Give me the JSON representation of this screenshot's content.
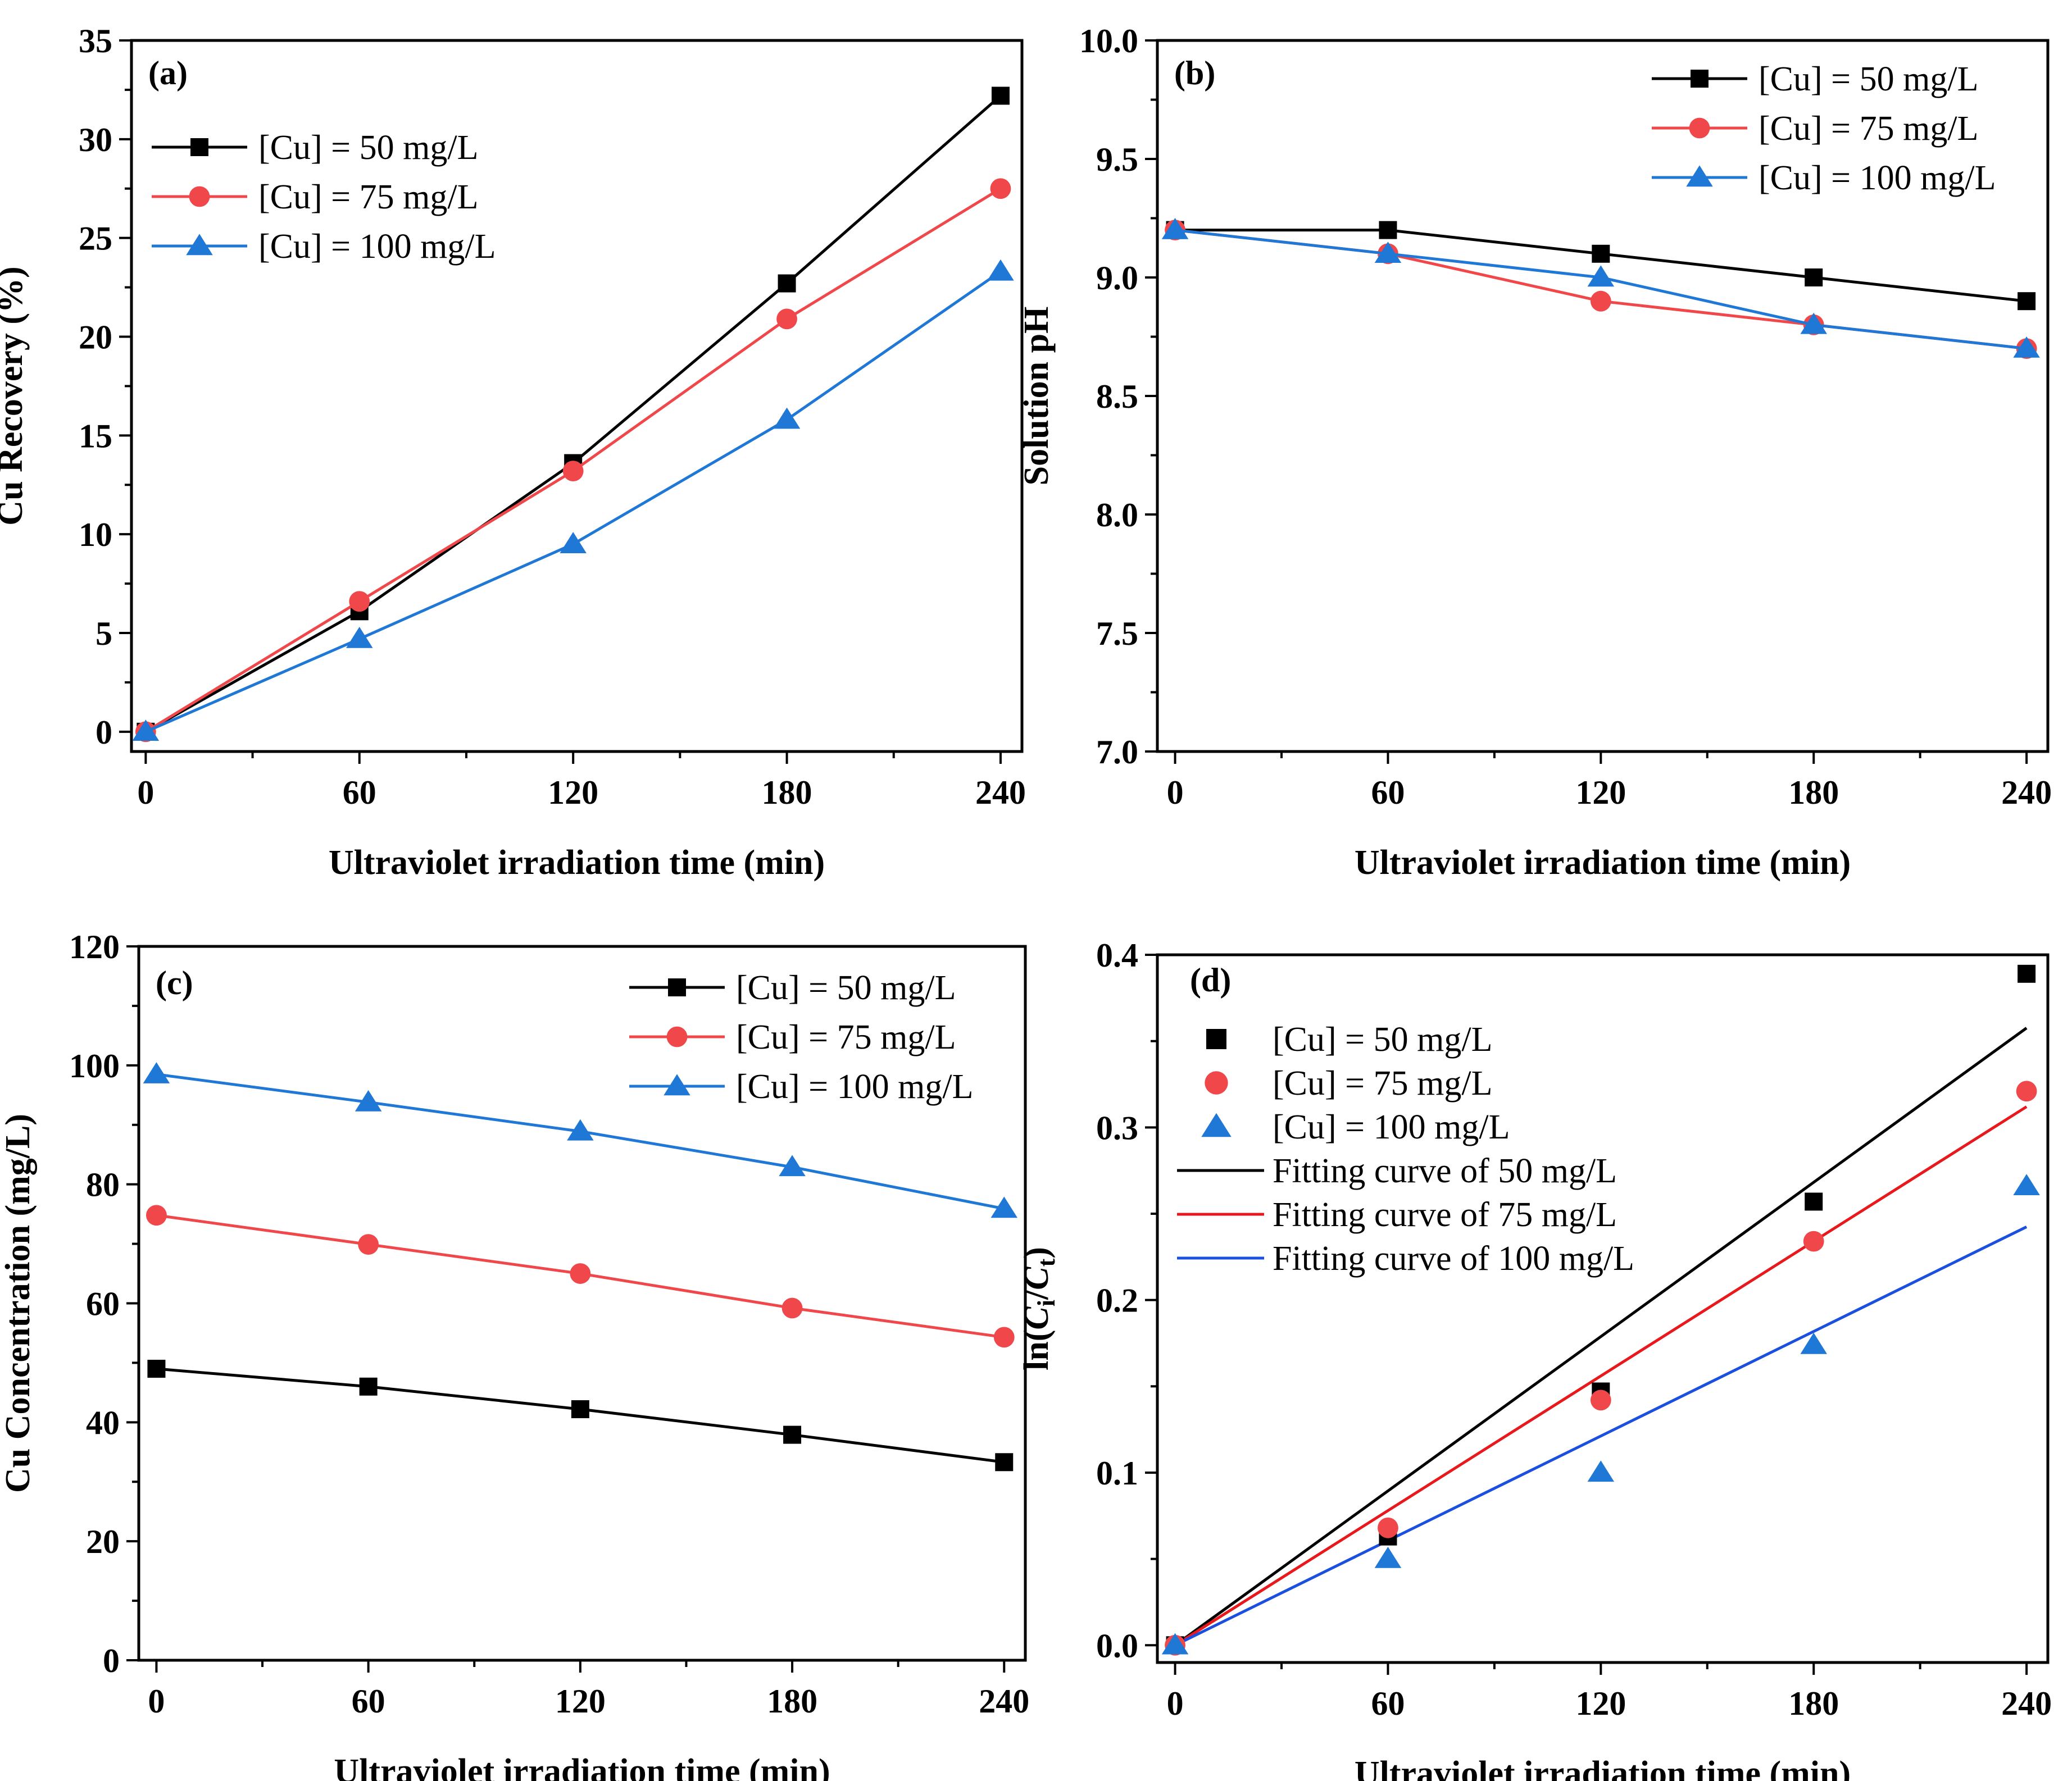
{
  "colors": {
    "black": "#000000",
    "red": "#f0474a",
    "blue": "#1f77d6",
    "fit_black": "#000000",
    "fit_red": "#e8191c",
    "fit_blue": "#1a4fe0"
  },
  "chart_data": [
    {
      "type": "line",
      "panel": "(a)",
      "xlabel": "Ultraviolet irradiation time (min)",
      "ylabel": "Cu Recovery (%)",
      "x": [
        0,
        60,
        120,
        180,
        240
      ],
      "xlim": [
        -4,
        246
      ],
      "ylim": [
        -1,
        35
      ],
      "xticks": [
        "0",
        "60",
        "120",
        "180",
        "240"
      ],
      "xtick_values": [
        0,
        60,
        120,
        180,
        240
      ],
      "yticks": [
        "0",
        "5",
        "10",
        "15",
        "20",
        "25",
        "30",
        "35"
      ],
      "ytick_values": [
        0,
        5,
        10,
        15,
        20,
        25,
        30,
        35
      ],
      "legend_position": "top-left",
      "series": [
        {
          "name": "[Cu] = 50 mg/L",
          "color": "black",
          "marker": "square",
          "values": [
            0,
            6.1,
            13.6,
            22.7,
            32.2
          ]
        },
        {
          "name": "[Cu] = 75 mg/L",
          "color": "red",
          "marker": "circle",
          "values": [
            0,
            6.6,
            13.2,
            20.9,
            27.5
          ]
        },
        {
          "name": "[Cu] = 100 mg/L",
          "color": "blue",
          "marker": "triangle",
          "values": [
            0,
            4.7,
            9.5,
            15.8,
            23.3
          ]
        }
      ]
    },
    {
      "type": "line",
      "panel": "(b)",
      "xlabel": "Ultraviolet irradiation time (min)",
      "ylabel": "Solution pH",
      "x": [
        0,
        60,
        120,
        180,
        240
      ],
      "xlim": [
        -5,
        246
      ],
      "ylim": [
        7.0,
        10.0
      ],
      "xticks": [
        "0",
        "60",
        "120",
        "180",
        "240"
      ],
      "xtick_values": [
        0,
        60,
        120,
        180,
        240
      ],
      "yticks": [
        "7.0",
        "7.5",
        "8.0",
        "8.5",
        "9.0",
        "9.5",
        "10.0"
      ],
      "ytick_values": [
        7.0,
        7.5,
        8.0,
        8.5,
        9.0,
        9.5,
        10.0
      ],
      "legend_position": "top-right",
      "series": [
        {
          "name": "[Cu] = 50 mg/L",
          "color": "black",
          "marker": "square",
          "values": [
            9.2,
            9.2,
            9.1,
            9.0,
            8.9
          ]
        },
        {
          "name": "[Cu] = 75 mg/L",
          "color": "red",
          "marker": "circle",
          "values": [
            9.2,
            9.1,
            8.9,
            8.8,
            8.7
          ]
        },
        {
          "name": "[Cu] = 100 mg/L",
          "color": "blue",
          "marker": "triangle",
          "values": [
            9.2,
            9.1,
            9.0,
            8.8,
            8.7
          ]
        }
      ]
    },
    {
      "type": "line",
      "panel": "(c)",
      "xlabel": "Ultraviolet irradiation time (min)",
      "ylabel": "Cu Concentration (mg/L)",
      "x": [
        0,
        60,
        120,
        180,
        240
      ],
      "xlim": [
        -5,
        246
      ],
      "ylim": [
        0,
        120
      ],
      "xticks": [
        "0",
        "60",
        "120",
        "180",
        "240"
      ],
      "xtick_values": [
        0,
        60,
        120,
        180,
        240
      ],
      "yticks": [
        "0",
        "20",
        "40",
        "60",
        "80",
        "100",
        "120"
      ],
      "ytick_values": [
        0,
        20,
        40,
        60,
        80,
        100,
        120
      ],
      "legend_position": "top-right",
      "series": [
        {
          "name": "[Cu] = 50 mg/L",
          "color": "black",
          "marker": "square",
          "values": [
            49,
            46,
            42.2,
            37.9,
            33.3
          ]
        },
        {
          "name": "[Cu] = 75 mg/L",
          "color": "red",
          "marker": "circle",
          "values": [
            74.8,
            69.9,
            65,
            59.2,
            54.3
          ]
        },
        {
          "name": "[Cu] = 100 mg/L",
          "color": "blue",
          "marker": "triangle",
          "values": [
            98.5,
            93.8,
            88.9,
            82.9,
            75.9
          ]
        }
      ]
    },
    {
      "type": "scatter",
      "panel": "(d)",
      "xlabel": "Ultraviolet irradiation time (min)",
      "ylabel_prefix": "ln(",
      "ylabel_var1": "C",
      "ylabel_sub1": "i",
      "ylabel_slash": "/",
      "ylabel_var2": "C",
      "ylabel_sub2": "t",
      "ylabel_suffix": ")",
      "x": [
        0,
        60,
        120,
        180,
        240
      ],
      "xlim": [
        -5,
        246
      ],
      "ylim": [
        -0.01,
        0.4
      ],
      "xticks": [
        "0",
        "60",
        "120",
        "180",
        "240"
      ],
      "xtick_values": [
        0,
        60,
        120,
        180,
        240
      ],
      "yticks": [
        "0.0",
        "0.1",
        "0.2",
        "0.3",
        "0.4"
      ],
      "ytick_values": [
        0,
        0.1,
        0.2,
        0.3,
        0.4
      ],
      "legend_position": "top-left",
      "series": [
        {
          "name": "[Cu] = 50 mg/L",
          "color": "black",
          "marker": "square",
          "values": [
            0,
            0.063,
            0.147,
            0.257,
            0.389
          ]
        },
        {
          "name": "[Cu] = 75 mg/L",
          "color": "red",
          "marker": "circle",
          "values": [
            0,
            0.068,
            0.142,
            0.234,
            0.321
          ]
        },
        {
          "name": "[Cu] = 100 mg/L",
          "color": "blue",
          "marker": "triangle",
          "values": [
            0,
            0.05,
            0.1,
            0.174,
            0.266
          ]
        }
      ],
      "fits": [
        {
          "name": "Fitting curve of 50 mg/L",
          "color": "fit_black",
          "slope": 0.00149
        },
        {
          "name": "Fitting curve of 75 mg/L",
          "color": "fit_red",
          "slope": 0.0013
        },
        {
          "name": "Fitting curve of 100 mg/L",
          "color": "fit_blue",
          "slope": 0.00101
        }
      ]
    }
  ]
}
